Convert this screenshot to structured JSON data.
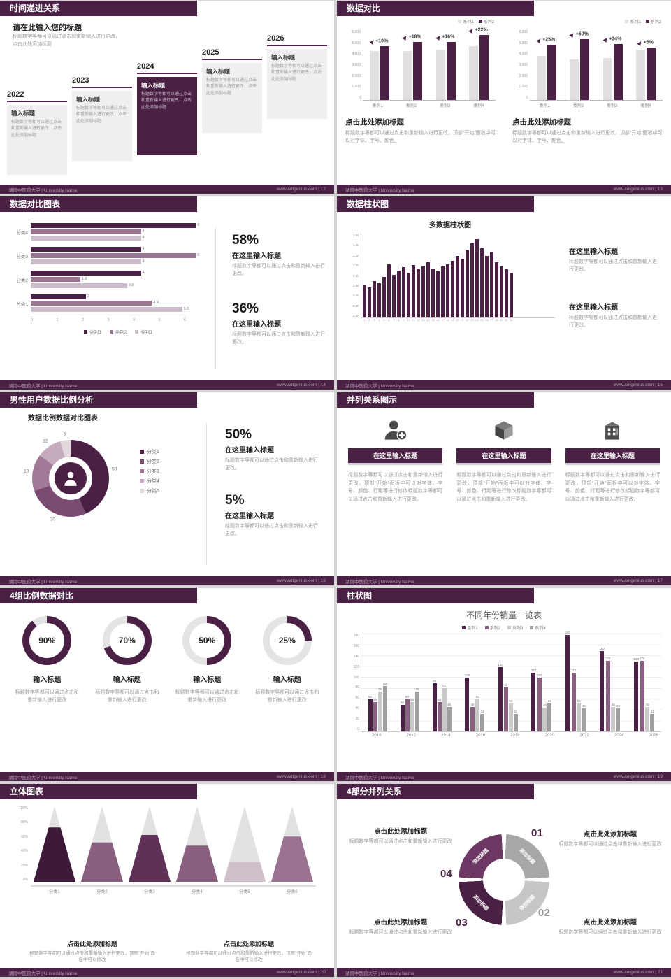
{
  "footer": {
    "institution": "湖南中医药大学 | University Name",
    "site": "www.aotgenius.com"
  },
  "slides": {
    "s1": {
      "header": "时间递进关系",
      "page": "12",
      "title": "请在此输入您的标题",
      "subtitle": "标题数字等都可以通过点击和重新输入进行更改，点击此处添加标题",
      "years": [
        "2022",
        "2023",
        "2024",
        "2025",
        "2026"
      ],
      "box_title": "输入标题",
      "box_body": "标题数字等都可以通过点击和重新输入进行更改，点击此处添加标题"
    },
    "s2": {
      "header": "数据对比",
      "page": "13",
      "caption_title": "点击此处添加标题",
      "caption_body": "标题数字等都可以通过点击和重新输入进行更改，顶部“开始”面板中可以对字体、字号、颜色。",
      "legend": [
        "系列1",
        "系列2"
      ]
    },
    "s3": {
      "header": "数据对比图表",
      "page": "14",
      "legend": [
        "类别3",
        "类别2",
        "类别1"
      ],
      "stats": [
        {
          "value": "58%",
          "title": "在这里输入标题",
          "body": "标题数字等都可以通过点击和重新输入进行更改。"
        },
        {
          "value": "36%",
          "title": "在这里输入标题",
          "body": "标题数字等都可以通过点击和重新输入进行更改。"
        }
      ]
    },
    "s4": {
      "header": "数据柱状图",
      "page": "15",
      "blocks": [
        {
          "title": "在这里输入标题",
          "body": "标题数字等都可以通过点击和重新输入进行更改。"
        },
        {
          "title": "在这里输入标题",
          "body": "标题数字等都可以通过点击和重新输入进行更改。"
        }
      ]
    },
    "s5": {
      "header": "男性用户数据比例分析",
      "page": "16",
      "chart_title": "数据比例数据对比图表",
      "stats": [
        {
          "value": "50%",
          "title": "在这里输入标题",
          "body": "标题数字等都可以通过点击和重新输入进行更改。"
        },
        {
          "value": "5%",
          "title": "在这里输入标题",
          "body": "标题数字等都可以通过点击和重新输入进行更改。"
        }
      ]
    },
    "s6": {
      "header": "并列关系图示",
      "page": "17",
      "columns": [
        {
          "icon": "nurse-icon",
          "title": "在这里输入标题",
          "body": "标题数字等都可以通过点击和重新输入进行更改，顶部“开始”面板中可以对字体、字号、颜色、行距等进行修改标题数字等都可以通过点击和重新输入进行更改。"
        },
        {
          "icon": "box-3d-icon",
          "title": "在这里输入标题",
          "body": "标题数字等都可以通过点击和重新输入进行更改，顶部“开始”面板中可以对字体、字号、颜色、行距等进行修改标题数字等都可以通过点击和重新输入进行更改。"
        },
        {
          "icon": "building-icon",
          "title": "在这里输入标题",
          "body": "标题数字等都可以通过点击和重新输入进行更改，顶部“开始”面板中可以对字体、字号、颜色、行距等进行修改标题数字等都可以通过点击和重新输入进行更改。"
        }
      ]
    },
    "s7": {
      "header": "4组比例数据对比",
      "page": "18",
      "items": [
        {
          "percent": "90%",
          "title": "输入标题",
          "body": "标题数字等都可以通过点击和重新输入进行更改"
        },
        {
          "percent": "70%",
          "title": "输入标题",
          "body": "标题数字等都可以通过点击和重新输入进行更改"
        },
        {
          "percent": "50%",
          "title": "输入标题",
          "body": "标题数字等都可以通过点击和重新输入进行更改"
        },
        {
          "percent": "25%",
          "title": "输入标题",
          "body": "标题数字等都可以通过点击和重新输入进行更改"
        }
      ]
    },
    "s8": {
      "header": "柱状图",
      "page": "19"
    },
    "s9": {
      "header": "立体图表",
      "page": "20",
      "blocks": [
        {
          "title": "点击此处添加标题",
          "body": "标题数字等都可以通过点击和重新输入进行更改，顶部“开始”面板中可以修改"
        },
        {
          "title": "点击此处添加标题",
          "body": "标题数字等都可以通过点击和重新输入进行更改，顶部“开始”面板中可以修改"
        }
      ]
    },
    "s10": {
      "header": "4部分并列关系",
      "page": "21",
      "blocks": [
        {
          "title": "点击此处添加标题",
          "body": "标题数字等都可以通过点击和重新输入进行更改"
        },
        {
          "title": "点击此处添加标题",
          "body": "标题数字等都可以通过点击和重新输入进行更改"
        },
        {
          "title": "点击此处添加标题",
          "body": "标题数字等都可以通过点击和重新输入进行更改"
        },
        {
          "title": "点击此处添加标题",
          "body": "标题数字等都可以通过点击和重新输入进行更改"
        }
      ]
    }
  },
  "colors": {
    "plum_dark": "#4a2145",
    "plum_mid": "#8a5f80",
    "plum_light": "#cdbcc9",
    "gray_bar": "#e0e0e0",
    "background": "#d4d4d4"
  },
  "chart_data": [
    {
      "id": "compare-left",
      "type": "bar",
      "categories": [
        "类别1",
        "类别2",
        "类别3",
        "类别4"
      ],
      "series": [
        {
          "name": "系列1",
          "values": [
            4200,
            4200,
            4300,
            4600
          ]
        },
        {
          "name": "系列2",
          "values": [
            4620,
            4960,
            4990,
            5610
          ]
        }
      ],
      "growth_labels": [
        "+10%",
        "+18%",
        "+16%",
        "+22%"
      ],
      "yticks": [
        "6,000",
        "5,000",
        "4,000",
        "3,000",
        "2,000",
        "1,000",
        "0"
      ],
      "ylim": [
        0,
        6000
      ],
      "legend_position": "top-right"
    },
    {
      "id": "compare-right",
      "type": "bar",
      "categories": [
        "类别1",
        "类别2",
        "类别3",
        "类别4"
      ],
      "series": [
        {
          "name": "系列1",
          "values": [
            3800,
            3500,
            3600,
            4300
          ]
        },
        {
          "name": "系列2",
          "values": [
            4750,
            5250,
            4820,
            4520
          ]
        }
      ],
      "growth_labels": [
        "+25%",
        "+50%",
        "+34%",
        "+5%"
      ],
      "yticks": [
        "6,000",
        "5,000",
        "4,000",
        "3,000",
        "2,000",
        "1,000",
        "0"
      ],
      "ylim": [
        0,
        6000
      ],
      "legend_position": "top-right"
    },
    {
      "id": "hbar-compare",
      "type": "bar",
      "orientation": "horizontal",
      "categories": [
        "分类4",
        "分类3",
        "分类2",
        "分类1"
      ],
      "series": [
        {
          "name": "类别3",
          "values": [
            6,
            4,
            4,
            2
          ]
        },
        {
          "name": "类别2",
          "values": [
            4,
            6,
            1.8,
            4.4
          ]
        },
        {
          "name": "类别1",
          "values": [
            4,
            4,
            3.5,
            5.5
          ]
        }
      ],
      "xticks": [
        0,
        1,
        2,
        3,
        4,
        5,
        6
      ],
      "xlim": [
        0,
        6.5
      ]
    },
    {
      "id": "multi-column",
      "type": "bar",
      "title": "多数据柱状图",
      "x": [
        1,
        2,
        3,
        4,
        5,
        6,
        7,
        8,
        9,
        10,
        11,
        12,
        13,
        14,
        15,
        16,
        17,
        18,
        19,
        20,
        21,
        22,
        23,
        24,
        25,
        26,
        27,
        28,
        29,
        30,
        31
      ],
      "values": [
        620,
        580,
        700,
        660,
        780,
        1020,
        820,
        900,
        960,
        860,
        1000,
        920,
        980,
        1060,
        940,
        880,
        980,
        1020,
        1080,
        1180,
        1120,
        1280,
        1420,
        1500,
        1320,
        1180,
        1260,
        1060,
        980,
        920,
        860
      ],
      "yticks": [
        "1.6K",
        "1.4K",
        "1.2K",
        "1.0K",
        "0.8K",
        "0.6K",
        "0.4K",
        "0.2K",
        "0.0K"
      ],
      "ylim": [
        0,
        1600
      ]
    },
    {
      "id": "gender-donut",
      "type": "pie",
      "title": "数据比例数据对比图表",
      "labels": [
        "分类1",
        "分类2",
        "分类3",
        "分类4",
        "分类5"
      ],
      "values": [
        50,
        30,
        18,
        12,
        5
      ],
      "colors": [
        "#4a2145",
        "#7a4a70",
        "#a07a97",
        "#c5abbc",
        "#e3d7de"
      ]
    },
    {
      "id": "ratio-rings",
      "type": "donut-progress",
      "values": [
        90,
        70,
        50,
        25
      ]
    },
    {
      "id": "yearly-sales",
      "type": "bar",
      "title": "不同年份销量一览表",
      "categories": [
        "2010",
        "2012",
        "2014",
        "2016",
        "2018",
        "2020",
        "2022",
        "2024",
        "2026"
      ],
      "series": [
        {
          "name": "系列1",
          "values": [
            60,
            50,
            90,
            100,
            120,
            110,
            180,
            150,
            130
          ]
        },
        {
          "name": "系列2",
          "values": [
            55,
            60,
            55,
            46,
            82,
            100,
            110,
            132,
            132
          ]
        },
        {
          "name": "系列3",
          "values": [
            75,
            55,
            81,
            60,
            52,
            45,
            52,
            46,
            46
          ]
        },
        {
          "name": "系列4",
          "values": [
            85,
            75,
            46,
            32,
            32,
            52,
            43,
            43,
            32
          ]
        }
      ],
      "yticks": [
        180,
        160,
        140,
        120,
        100,
        80,
        60,
        40,
        20,
        0
      ],
      "ylim": [
        0,
        180
      ],
      "colors": [
        "#4a2145",
        "#8a5f80",
        "#c9c9c9",
        "#9f9f9f"
      ]
    },
    {
      "id": "cone-chart",
      "type": "bar",
      "style": "3d-cone",
      "categories": [
        "分类1",
        "分类2",
        "分类3",
        "分类4",
        "分类5",
        "分类6"
      ],
      "values": [
        72,
        52,
        62,
        48,
        26,
        60
      ],
      "colors": [
        "#3c1938",
        "#8a5f80",
        "#5f3158",
        "#8a5f80",
        "#cfc0cb",
        "#9c7292"
      ],
      "yticks": [
        "100%",
        "80%",
        "60%",
        "40%",
        "20%",
        "0%"
      ],
      "ylim": [
        0,
        100
      ]
    },
    {
      "id": "cycle-4part",
      "type": "pie",
      "style": "ring-4part",
      "parts": [
        {
          "num": "01",
          "label": "添加标题"
        },
        {
          "num": "02",
          "label": "添加标题"
        },
        {
          "num": "03",
          "label": "添加标题"
        },
        {
          "num": "04",
          "label": "添加标题"
        }
      ],
      "colors": [
        "#a8a8a8",
        "#c6c6c6",
        "#4a2145",
        "#6d3863"
      ]
    }
  ]
}
